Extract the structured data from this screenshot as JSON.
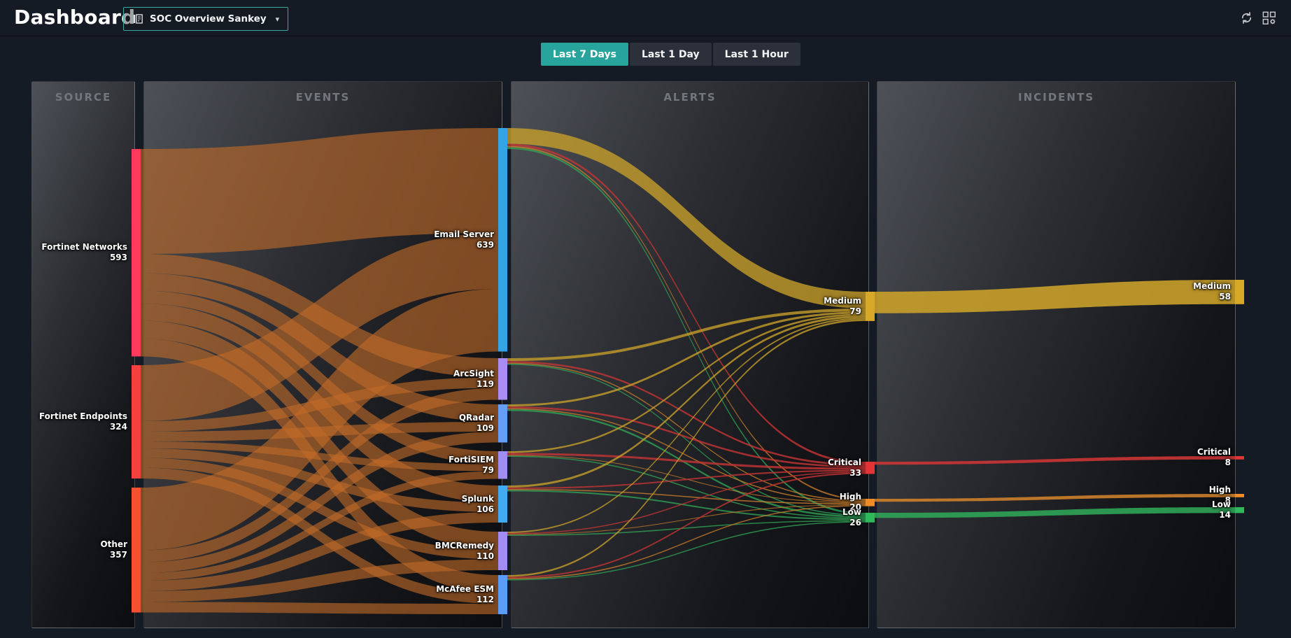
{
  "header": {
    "title": "Dashboard",
    "dashboard_selector": {
      "label": "SOC Overview Sankey",
      "caret": "▾"
    },
    "icons": [
      "dashboard-report-icon",
      "refresh-icon",
      "manage-widgets-icon"
    ]
  },
  "time_tabs": {
    "options": [
      "Last 7 Days",
      "Last 1 Day",
      "Last 1 Hour"
    ],
    "active": "Last 7 Days"
  },
  "panels": [
    {
      "title": "SOURCE"
    },
    {
      "title": "EVENTS"
    },
    {
      "title": "ALERTS"
    },
    {
      "title": "INCIDENTS"
    }
  ],
  "colors": {
    "accent_teal": "#27a49c",
    "selector_border": "#3aa9a2",
    "background": "#151b24",
    "flow": "#c06a28",
    "severity": {
      "medium": "#c9a02a",
      "critical": "#ca3535",
      "high": "#cd7f2b",
      "low": "#2fa456"
    }
  },
  "chart_data": {
    "type": "sankey",
    "title": "SOC Overview Sankey",
    "columns": [
      "SOURCE",
      "EVENTS",
      "ALERTS",
      "INCIDENTS"
    ],
    "nodes": [
      {
        "id": "fortinet_networks",
        "label": "Fortinet Networks",
        "value": 593,
        "column": "source",
        "color": "#fb3a5c"
      },
      {
        "id": "fortinet_endpoints",
        "label": "Fortinet Endpoints",
        "value": 324,
        "column": "source",
        "color": "#f4403f"
      },
      {
        "id": "other",
        "label": "Other",
        "value": 357,
        "column": "source",
        "color": "#f55130"
      },
      {
        "id": "email_server",
        "label": "Email Server",
        "value": 639,
        "column": "events",
        "color": "#33a5e5"
      },
      {
        "id": "arcsight",
        "label": "ArcSight",
        "value": 119,
        "column": "events",
        "color": "#ab8cf5"
      },
      {
        "id": "qradar",
        "label": "QRadar",
        "value": 109,
        "column": "events",
        "color": "#669df6"
      },
      {
        "id": "fortisiem",
        "label": "FortiSIEM",
        "value": 79,
        "column": "events",
        "color": "#9f8df2"
      },
      {
        "id": "splunk",
        "label": "Splunk",
        "value": 106,
        "column": "events",
        "color": "#41aaf0"
      },
      {
        "id": "bmcremedy",
        "label": "BMCRemedy",
        "value": 110,
        "column": "events",
        "color": "#a38df4"
      },
      {
        "id": "mcafee_esm",
        "label": "McAfee ESM",
        "value": 112,
        "column": "events",
        "color": "#5b9cf6"
      },
      {
        "id": "a_medium",
        "label": "Medium",
        "value": 79,
        "column": "alerts",
        "color": "#d8a928"
      },
      {
        "id": "a_critical",
        "label": "Critical",
        "value": 33,
        "column": "alerts",
        "color": "#e23434"
      },
      {
        "id": "a_high",
        "label": "High",
        "value": 20,
        "column": "alerts",
        "color": "#f08c26"
      },
      {
        "id": "a_low",
        "label": "Low",
        "value": 26,
        "column": "alerts",
        "color": "#2eb95a"
      },
      {
        "id": "i_medium",
        "label": "Medium",
        "value": 58,
        "column": "incidents",
        "color": "#d8a928"
      },
      {
        "id": "i_critical",
        "label": "Critical",
        "value": 8,
        "column": "incidents",
        "color": "#e23434"
      },
      {
        "id": "i_high",
        "label": "High",
        "value": 8,
        "column": "incidents",
        "color": "#f08c26"
      },
      {
        "id": "i_low",
        "label": "Low",
        "value": 14,
        "column": "incidents",
        "color": "#2eb95a"
      }
    ],
    "links": [
      {
        "source": "fortinet_networks",
        "target": "email_server",
        "value": 300
      },
      {
        "source": "fortinet_networks",
        "target": "arcsight",
        "value": 55
      },
      {
        "source": "fortinet_networks",
        "target": "qradar",
        "value": 50
      },
      {
        "source": "fortinet_networks",
        "target": "fortisiem",
        "value": 37
      },
      {
        "source": "fortinet_networks",
        "target": "splunk",
        "value": 49
      },
      {
        "source": "fortinet_networks",
        "target": "bmcremedy",
        "value": 51
      },
      {
        "source": "fortinet_networks",
        "target": "mcafee_esm",
        "value": 51
      },
      {
        "source": "fortinet_endpoints",
        "target": "email_server",
        "value": 160
      },
      {
        "source": "fortinet_endpoints",
        "target": "arcsight",
        "value": 30
      },
      {
        "source": "fortinet_endpoints",
        "target": "qradar",
        "value": 28
      },
      {
        "source": "fortinet_endpoints",
        "target": "fortisiem",
        "value": 20
      },
      {
        "source": "fortinet_endpoints",
        "target": "splunk",
        "value": 27
      },
      {
        "source": "fortinet_endpoints",
        "target": "bmcremedy",
        "value": 28
      },
      {
        "source": "fortinet_endpoints",
        "target": "mcafee_esm",
        "value": 31
      },
      {
        "source": "other",
        "target": "email_server",
        "value": 179
      },
      {
        "source": "other",
        "target": "arcsight",
        "value": 34
      },
      {
        "source": "other",
        "target": "qradar",
        "value": 31
      },
      {
        "source": "other",
        "target": "fortisiem",
        "value": 22
      },
      {
        "source": "other",
        "target": "splunk",
        "value": 30
      },
      {
        "source": "other",
        "target": "bmcremedy",
        "value": 31
      },
      {
        "source": "other",
        "target": "mcafee_esm",
        "value": 30
      },
      {
        "source": "email_server",
        "target": "a_medium",
        "value": 45
      },
      {
        "source": "email_server",
        "target": "a_critical",
        "value": 6
      },
      {
        "source": "email_server",
        "target": "a_high",
        "value": 4
      },
      {
        "source": "email_server",
        "target": "a_low",
        "value": 5
      },
      {
        "source": "arcsight",
        "target": "a_medium",
        "value": 8
      },
      {
        "source": "arcsight",
        "target": "a_critical",
        "value": 5
      },
      {
        "source": "arcsight",
        "target": "a_high",
        "value": 3
      },
      {
        "source": "arcsight",
        "target": "a_low",
        "value": 3
      },
      {
        "source": "qradar",
        "target": "a_medium",
        "value": 6
      },
      {
        "source": "qradar",
        "target": "a_critical",
        "value": 5
      },
      {
        "source": "qradar",
        "target": "a_high",
        "value": 3
      },
      {
        "source": "qradar",
        "target": "a_low",
        "value": 5
      },
      {
        "source": "fortisiem",
        "target": "a_medium",
        "value": 5
      },
      {
        "source": "fortisiem",
        "target": "a_critical",
        "value": 6
      },
      {
        "source": "fortisiem",
        "target": "a_high",
        "value": 2
      },
      {
        "source": "fortisiem",
        "target": "a_low",
        "value": 3
      },
      {
        "source": "splunk",
        "target": "a_medium",
        "value": 6
      },
      {
        "source": "splunk",
        "target": "a_critical",
        "value": 4
      },
      {
        "source": "splunk",
        "target": "a_high",
        "value": 3
      },
      {
        "source": "splunk",
        "target": "a_low",
        "value": 4
      },
      {
        "source": "bmcremedy",
        "target": "a_medium",
        "value": 4
      },
      {
        "source": "bmcremedy",
        "target": "a_critical",
        "value": 3
      },
      {
        "source": "bmcremedy",
        "target": "a_high",
        "value": 2
      },
      {
        "source": "bmcremedy",
        "target": "a_low",
        "value": 3
      },
      {
        "source": "mcafee_esm",
        "target": "a_medium",
        "value": 5
      },
      {
        "source": "mcafee_esm",
        "target": "a_critical",
        "value": 4
      },
      {
        "source": "mcafee_esm",
        "target": "a_high",
        "value": 3
      },
      {
        "source": "mcafee_esm",
        "target": "a_low",
        "value": 3
      },
      {
        "source": "a_medium",
        "target": "i_medium",
        "value": 58
      },
      {
        "source": "a_critical",
        "target": "i_critical",
        "value": 8
      },
      {
        "source": "a_high",
        "target": "i_high",
        "value": 8
      },
      {
        "source": "a_low",
        "target": "i_low",
        "value": 14
      }
    ]
  }
}
